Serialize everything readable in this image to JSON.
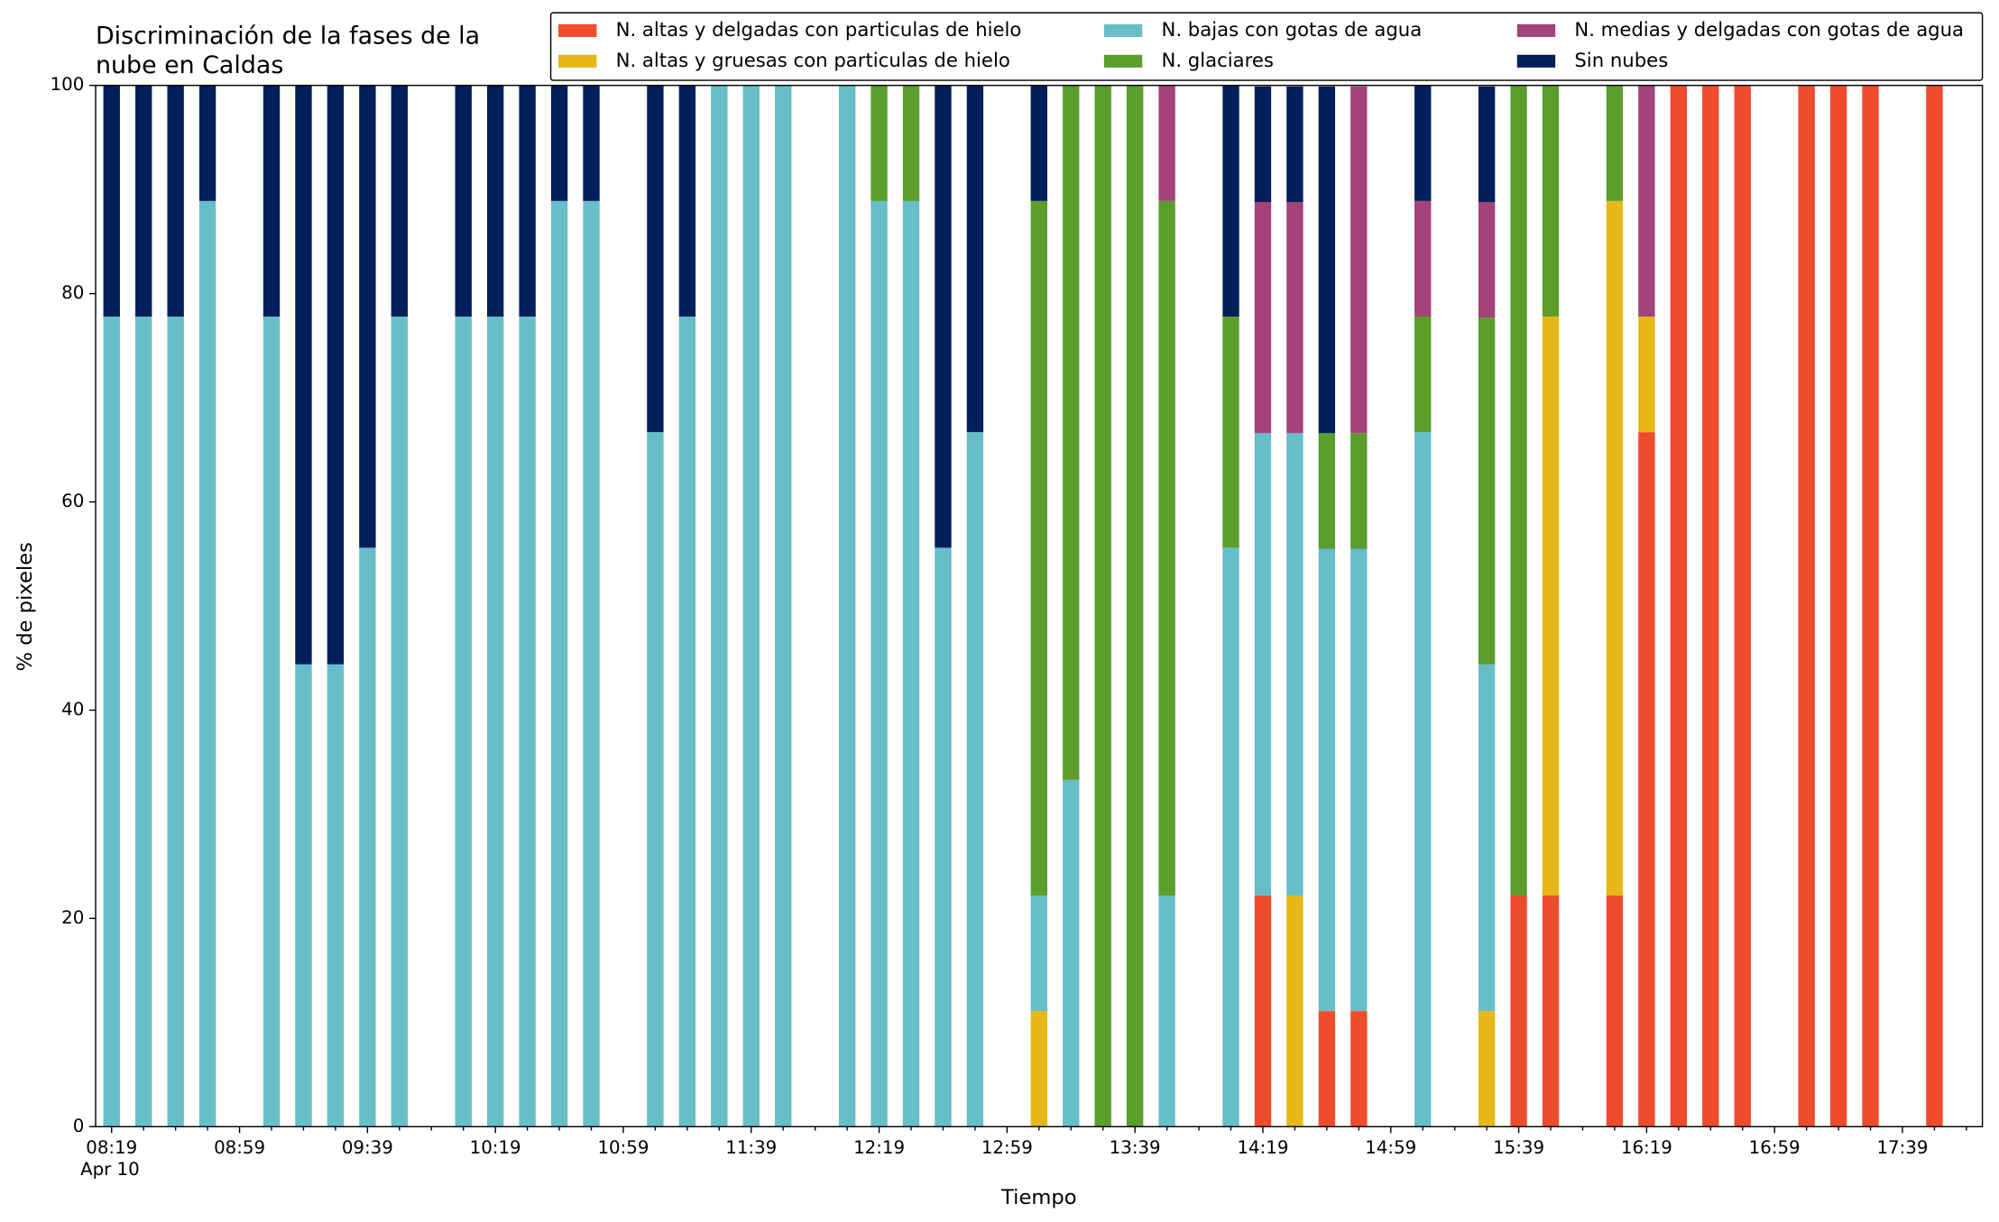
{
  "chart_data": {
    "type": "stacked_bar",
    "title": [
      "Discriminación de la fases de la",
      "nube en Caldas"
    ],
    "xlabel": "Tiempo",
    "ylabel": "% de pixeles",
    "x_date_label": "Apr 10",
    "categories": [
      "08:19",
      null,
      null,
      null,
      "08:59",
      null,
      null,
      null,
      "09:39",
      null,
      null,
      null,
      "10:19",
      null,
      null,
      null,
      "10:59",
      null,
      null,
      null,
      "11:39",
      null,
      null,
      null,
      "12:19",
      null,
      null,
      null,
      "12:59",
      null,
      null,
      null,
      "13:39",
      null,
      null,
      null,
      "14:19",
      null,
      null,
      null,
      "14:59",
      null,
      null,
      null,
      "15:39",
      null,
      null,
      null,
      "16:19",
      null,
      null,
      null,
      "16:59",
      null,
      null,
      null,
      "17:39",
      null,
      null
    ],
    "series": [
      {
        "name": "N. altas y delgadas con particulas de hielo",
        "color": "#f04b2d",
        "values": [
          0,
          0,
          0,
          0,
          0,
          0,
          0,
          0,
          0,
          0,
          0,
          0,
          0,
          0,
          0,
          0,
          0,
          0,
          0,
          0,
          0,
          0,
          0,
          0,
          0,
          0,
          0,
          0,
          0,
          0,
          0,
          0,
          0,
          0,
          0,
          0,
          22.2,
          0,
          11.1,
          11.1,
          0,
          0,
          0,
          0,
          22.2,
          22.2,
          0,
          22.2,
          66.7,
          100,
          100,
          100,
          0,
          100,
          100,
          100,
          0,
          100,
          0
        ]
      },
      {
        "name": "N. altas y gruesas con particulas de hielo",
        "color": "#e6b817",
        "values": [
          0,
          0,
          0,
          0,
          0,
          0,
          0,
          0,
          0,
          0,
          0,
          0,
          0,
          0,
          0,
          0,
          0,
          0,
          0,
          0,
          0,
          0,
          0,
          0,
          0,
          0,
          0,
          0,
          0,
          11.1,
          0,
          0,
          0,
          0,
          0,
          0,
          0,
          22.2,
          0,
          0,
          0,
          0,
          0,
          11.1,
          0,
          55.6,
          0,
          66.7,
          11.1,
          0,
          0,
          0,
          0,
          0,
          0,
          0,
          0,
          0,
          0
        ]
      },
      {
        "name": "N. bajas con gotas de agua",
        "color": "#67bec9",
        "values": [
          77.8,
          77.8,
          77.8,
          88.9,
          0,
          77.8,
          44.4,
          44.4,
          55.6,
          77.8,
          0,
          77.8,
          77.8,
          77.8,
          88.9,
          88.9,
          0,
          66.7,
          77.8,
          100,
          100,
          100,
          0,
          100,
          88.9,
          88.9,
          55.6,
          66.7,
          0,
          11.1,
          33.3,
          0,
          0,
          22.2,
          0,
          55.6,
          44.4,
          44.4,
          44.4,
          44.4,
          0,
          66.7,
          0,
          33.3,
          0,
          0,
          0,
          0,
          0,
          0,
          0,
          0,
          0,
          0,
          0,
          0,
          0,
          0,
          0
        ]
      },
      {
        "name": "N. glaciares",
        "color": "#5b9e2b",
        "values": [
          0,
          0,
          0,
          0,
          0,
          0,
          0,
          0,
          0,
          0,
          0,
          0,
          0,
          0,
          0,
          0,
          0,
          0,
          0,
          0,
          0,
          0,
          0,
          0,
          11.1,
          11.1,
          0,
          0,
          0,
          66.7,
          66.7,
          100,
          100,
          66.7,
          0,
          22.2,
          0,
          0,
          11.1,
          11.1,
          0,
          11.1,
          0,
          33.3,
          77.8,
          22.2,
          0,
          11.1,
          0,
          0,
          0,
          0,
          0,
          0,
          0,
          0,
          0,
          0,
          0
        ]
      },
      {
        "name": "N. medias y delgadas con gotas de agua",
        "color": "#a4437a",
        "values": [
          0,
          0,
          0,
          0,
          0,
          0,
          0,
          0,
          0,
          0,
          0,
          0,
          0,
          0,
          0,
          0,
          0,
          0,
          0,
          0,
          0,
          0,
          0,
          0,
          0,
          0,
          0,
          0,
          0,
          0,
          0,
          0,
          0,
          11.1,
          0,
          0,
          22.2,
          22.2,
          0,
          33.3,
          0,
          11.1,
          0,
          11.1,
          0,
          0,
          0,
          0,
          22.2,
          0,
          0,
          0,
          0,
          0,
          0,
          0,
          0,
          0,
          0
        ]
      },
      {
        "name": "Sin nubes",
        "color": "#001f5b",
        "values": [
          22.2,
          22.2,
          22.2,
          11.1,
          0,
          22.2,
          55.6,
          55.6,
          44.4,
          22.2,
          0,
          22.2,
          22.2,
          22.2,
          11.1,
          11.1,
          0,
          33.3,
          22.2,
          0,
          0,
          0,
          0,
          0,
          0,
          0,
          44.4,
          33.3,
          0,
          11.1,
          0,
          0,
          0,
          0,
          0,
          22.2,
          11.1,
          11.1,
          33.3,
          0,
          0,
          11.1,
          0,
          11.1,
          0,
          0,
          0,
          0,
          0,
          0,
          0,
          0,
          0,
          0,
          0,
          0,
          0,
          0,
          0
        ]
      }
    ],
    "ylim": [
      0,
      100
    ],
    "yticks": [
      0,
      20,
      40,
      60,
      80,
      100
    ],
    "legend": "upper right"
  }
}
